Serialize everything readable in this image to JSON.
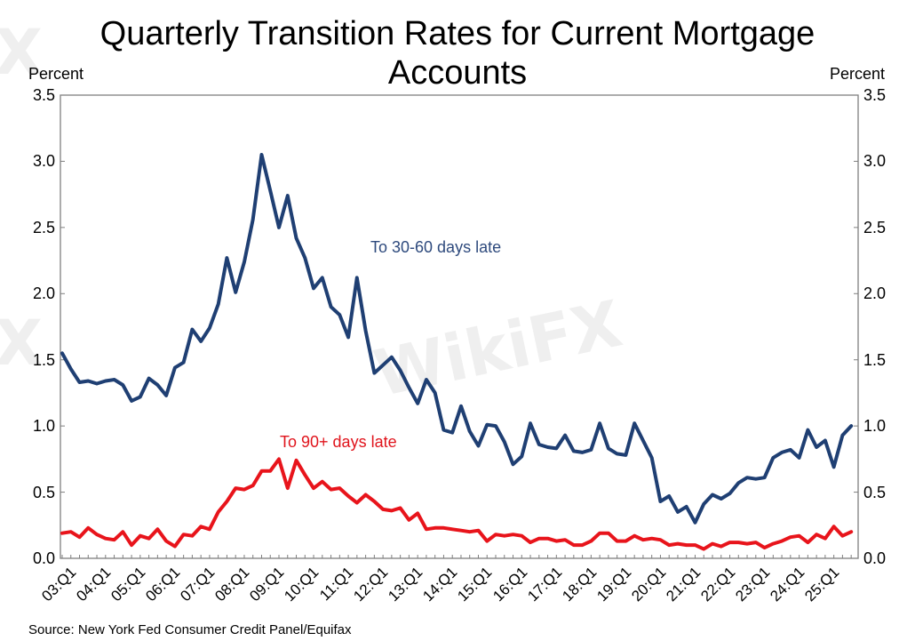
{
  "chart_data": {
    "type": "line",
    "title": "Quarterly Transition Rates for Current Mortgage Accounts",
    "title_lines": [
      "Quarterly Transition Rates for Current Mortgage",
      "Accounts"
    ],
    "ylabel_left": "Percent",
    "ylabel_right": "Percent",
    "xlabel": "",
    "ylim": [
      0,
      3.5
    ],
    "yticks": [
      "0.0",
      "0.5",
      "1.0",
      "1.5",
      "2.0",
      "2.5",
      "3.0",
      "3.5"
    ],
    "xtick_labels": [
      "03:Q1",
      "04:Q1",
      "05:Q1",
      "06:Q1",
      "07:Q1",
      "08:Q1",
      "09:Q1",
      "10:Q1",
      "11:Q1",
      "12:Q1",
      "13:Q1",
      "14:Q1",
      "15:Q1",
      "16:Q1",
      "17:Q1",
      "18:Q1",
      "19:Q1",
      "20:Q1",
      "21:Q1",
      "22:Q1",
      "23:Q1",
      "24:Q1",
      "25:Q1"
    ],
    "x_start": "03:Q1",
    "x_end": "25:Q4",
    "grid": false,
    "legend_position": "inline labels",
    "source": "Source: New York Fed Consumer Credit Panel/Equifax",
    "series": [
      {
        "name": "To 30-60 days late",
        "color": "#1f3f73",
        "values": [
          1.55,
          1.43,
          1.33,
          1.34,
          1.32,
          1.34,
          1.35,
          1.31,
          1.19,
          1.22,
          1.36,
          1.31,
          1.23,
          1.44,
          1.48,
          1.73,
          1.64,
          1.74,
          1.92,
          2.27,
          2.01,
          2.24,
          2.56,
          3.05,
          2.78,
          2.5,
          2.74,
          2.42,
          2.27,
          2.04,
          2.12,
          1.9,
          1.84,
          1.67,
          2.12,
          1.72,
          1.4,
          1.46,
          1.52,
          1.42,
          1.29,
          1.17,
          1.35,
          1.25,
          0.97,
          0.95,
          1.15,
          0.96,
          0.85,
          1.01,
          1.0,
          0.88,
          0.71,
          0.77,
          1.02,
          0.86,
          0.84,
          0.83,
          0.93,
          0.81,
          0.8,
          0.82,
          1.02,
          0.83,
          0.79,
          0.78,
          1.02,
          0.89,
          0.76,
          0.43,
          0.47,
          0.35,
          0.39,
          0.27,
          0.41,
          0.48,
          0.45,
          0.49,
          0.57,
          0.61,
          0.6,
          0.61,
          0.76,
          0.8,
          0.82,
          0.76,
          0.97,
          0.84,
          0.89,
          0.69,
          0.93,
          1.0
        ]
      },
      {
        "name": "To 90+ days late",
        "color": "#e8141b",
        "values": [
          0.19,
          0.2,
          0.16,
          0.23,
          0.18,
          0.15,
          0.14,
          0.2,
          0.1,
          0.17,
          0.15,
          0.22,
          0.13,
          0.09,
          0.18,
          0.17,
          0.24,
          0.22,
          0.35,
          0.43,
          0.53,
          0.52,
          0.55,
          0.66,
          0.66,
          0.75,
          0.53,
          0.74,
          0.63,
          0.53,
          0.58,
          0.52,
          0.53,
          0.47,
          0.42,
          0.48,
          0.43,
          0.37,
          0.36,
          0.38,
          0.29,
          0.34,
          0.22,
          0.23,
          0.23,
          0.22,
          0.21,
          0.2,
          0.21,
          0.13,
          0.18,
          0.17,
          0.18,
          0.17,
          0.12,
          0.15,
          0.15,
          0.13,
          0.14,
          0.1,
          0.1,
          0.13,
          0.19,
          0.19,
          0.13,
          0.13,
          0.17,
          0.14,
          0.15,
          0.14,
          0.1,
          0.11,
          0.1,
          0.1,
          0.07,
          0.11,
          0.09,
          0.12,
          0.12,
          0.11,
          0.12,
          0.08,
          0.11,
          0.13,
          0.16,
          0.17,
          0.12,
          0.18,
          0.15,
          0.24,
          0.17,
          0.2
        ]
      }
    ],
    "annotations": [
      {
        "text": "To 30-60 days late",
        "color": "#2e4a7d"
      },
      {
        "text": "To 90+ days late",
        "color": "#e0141c"
      }
    ]
  },
  "watermark": {
    "text": "WikiFX",
    "x_mark": "X"
  }
}
